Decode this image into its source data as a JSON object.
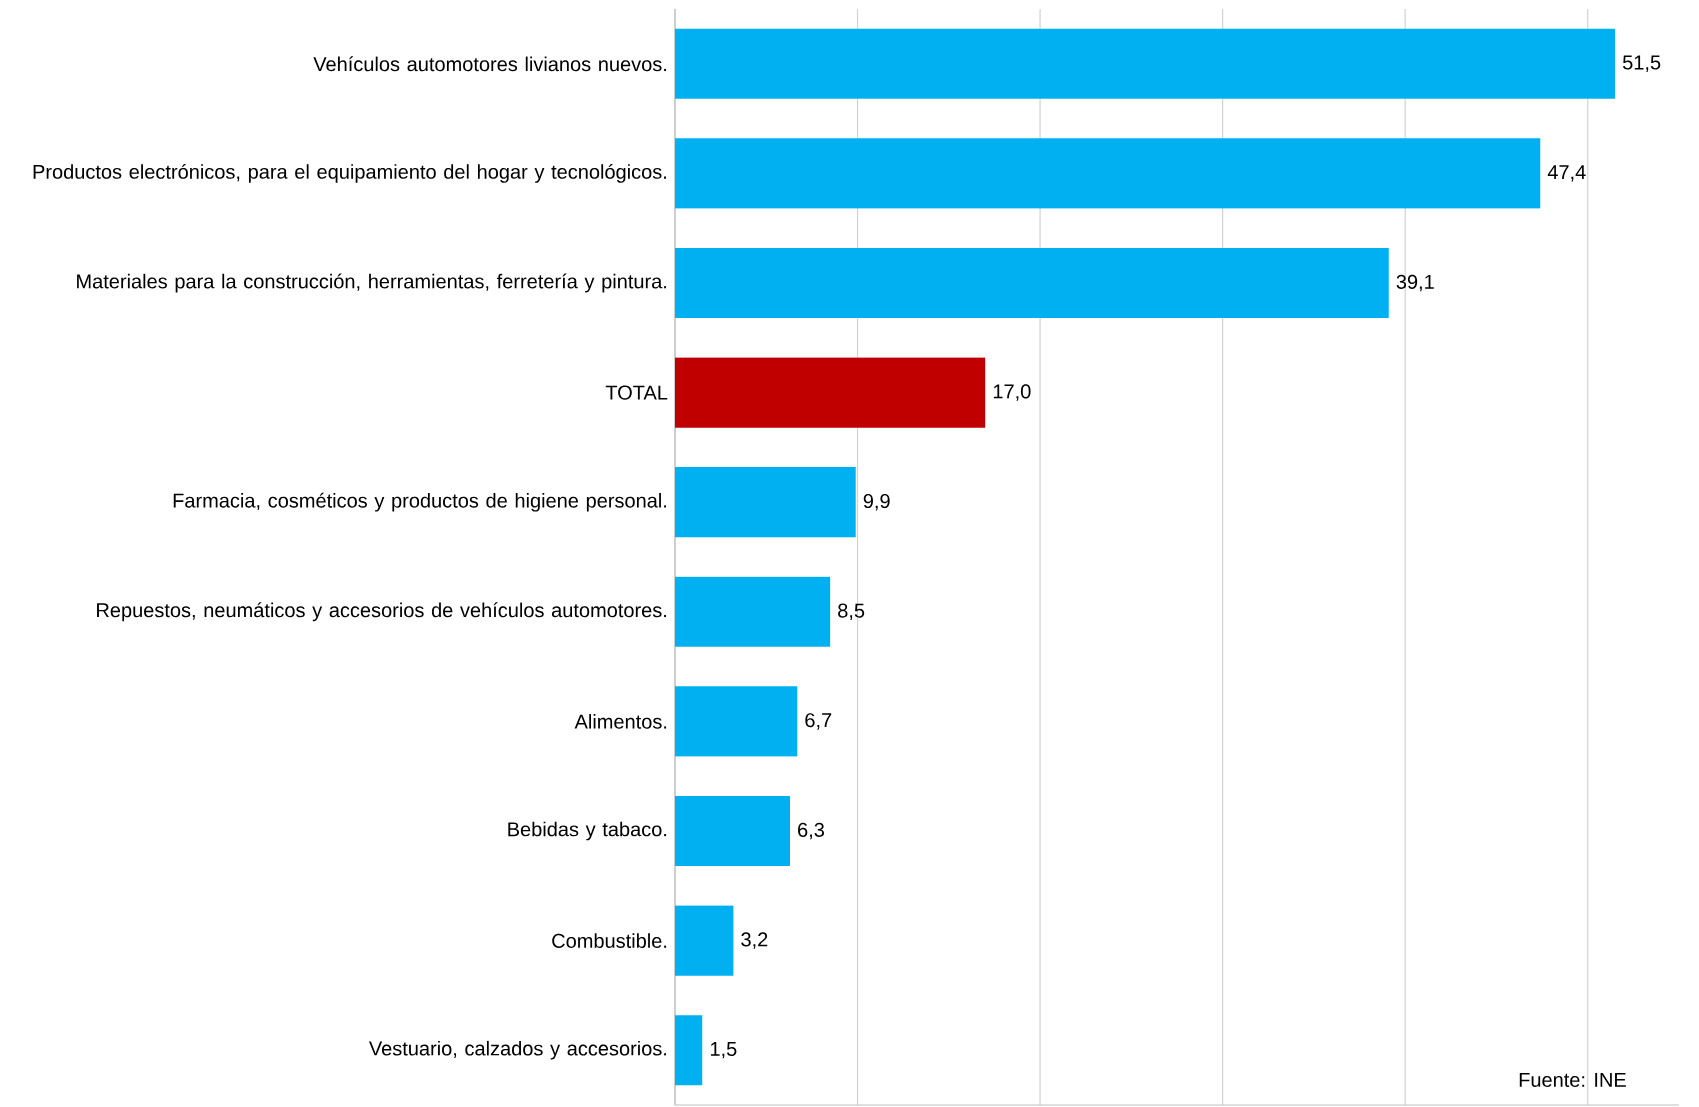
{
  "chart_data": {
    "type": "bar",
    "orientation": "horizontal",
    "categories": [
      "Vehículos automotores livianos nuevos.",
      "Productos electrónicos, para el equipamiento del hogar y tecnológicos.",
      "Materiales para la construcción, herramientas, ferretería y pintura.",
      "TOTAL",
      "Farmacia, cosméticos y productos de higiene personal.",
      "Repuestos, neumáticos y accesorios de vehículos automotores.",
      "Alimentos.",
      "Bebidas y tabaco.",
      "Combustible.",
      "Vestuario, calzados y accesorios."
    ],
    "values": [
      51.5,
      47.4,
      39.1,
      17.0,
      9.9,
      8.5,
      6.7,
      6.3,
      3.2,
      1.5
    ],
    "colors": [
      "#00b0f0",
      "#00b0f0",
      "#00b0f0",
      "#c00000",
      "#00b0f0",
      "#00b0f0",
      "#00b0f0",
      "#00b0f0",
      "#00b0f0",
      "#00b0f0"
    ],
    "value_labels": [
      "51,5",
      "47,4",
      "39,1",
      "17,0",
      "9,9",
      "8,5",
      "6,7",
      "6,3",
      "3,2",
      "1,5"
    ],
    "xlim": [
      0,
      55
    ],
    "grid": "x",
    "annotations": [
      "Fuente: INE"
    ]
  }
}
